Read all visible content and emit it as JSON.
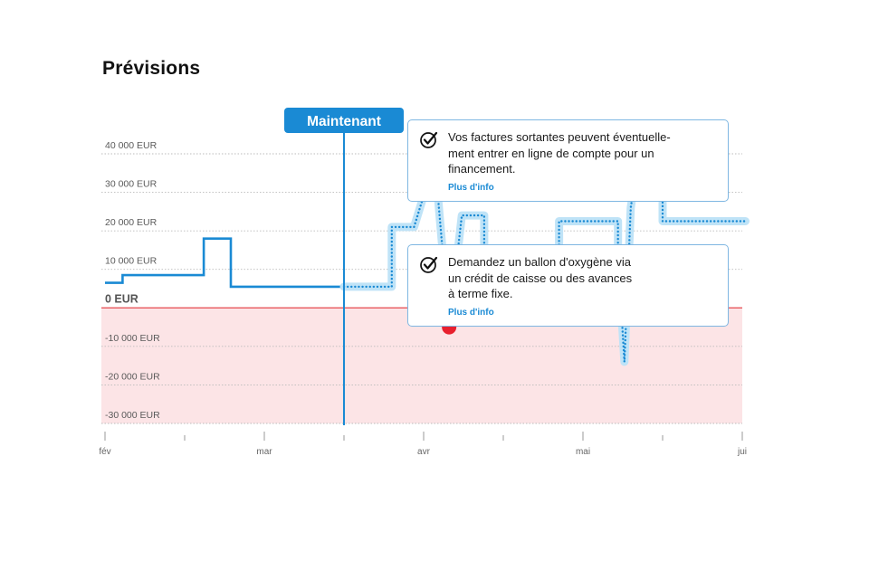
{
  "page": {
    "title": "Prévisions"
  },
  "now_marker": {
    "label": "Maintenant",
    "x": 1.5
  },
  "colors": {
    "line": "#1a8ad4",
    "halo": "#bfe3f7",
    "negative_zone": "#fce4e6",
    "zero_line": "#e5484d",
    "warning_dot": "#e8202e",
    "grid": "#bbbbbb"
  },
  "callouts": [
    {
      "icon": "check-circle-icon",
      "text_lines": [
        "Vos factures sortantes peuvent éventuelle-",
        "ment entrer en ligne de compte pour un",
        "financement."
      ],
      "link": "Plus d'info"
    },
    {
      "icon": "check-circle-icon",
      "text_lines": [
        "Demandez un ballon d'oxygène via",
        "un crédit de caisse ou des avances",
        "à terme fixe."
      ],
      "link": "Plus d'info"
    }
  ],
  "chart_data": {
    "type": "line",
    "title": "Prévisions",
    "xlabel": "",
    "ylabel": "",
    "x_unit": "month index (0 = fév, 4 = jui)",
    "xlim": [
      0,
      4
    ],
    "ylim": [
      -30000,
      40000
    ],
    "y_ticks": [
      {
        "value": 40000,
        "label": "40 000 EUR"
      },
      {
        "value": 30000,
        "label": "30 000 EUR"
      },
      {
        "value": 20000,
        "label": "20 000 EUR"
      },
      {
        "value": 10000,
        "label": "10 000 EUR"
      },
      {
        "value": 0,
        "label": "0 EUR"
      },
      {
        "value": -10000,
        "label": "-10 000 EUR"
      },
      {
        "value": -20000,
        "label": "-20 000 EUR"
      },
      {
        "value": -30000,
        "label": "-30 000 EUR"
      }
    ],
    "x_ticks": [
      {
        "value": 0,
        "label": "fév"
      },
      {
        "value": 0.5,
        "label": ""
      },
      {
        "value": 1,
        "label": "mar"
      },
      {
        "value": 1.5,
        "label": ""
      },
      {
        "value": 2,
        "label": "avr"
      },
      {
        "value": 2.5,
        "label": ""
      },
      {
        "value": 3,
        "label": "mai"
      },
      {
        "value": 3.5,
        "label": ""
      },
      {
        "value": 4,
        "label": "jui"
      }
    ],
    "grid": true,
    "negative_zone": true,
    "series": [
      {
        "style": "solid",
        "points": [
          [
            0,
            6500
          ],
          [
            0.11,
            6500
          ],
          [
            0.11,
            8500
          ],
          [
            0.62,
            8500
          ],
          [
            0.62,
            18000
          ],
          [
            0.79,
            18000
          ],
          [
            0.79,
            5500
          ],
          [
            1.5,
            5500
          ]
        ]
      },
      {
        "style": "dotted",
        "points": [
          [
            1.5,
            5500
          ],
          [
            1.8,
            5500
          ],
          [
            1.8,
            21000
          ],
          [
            1.94,
            21000
          ],
          [
            2.07,
            38500
          ],
          [
            2.16,
            -5000
          ],
          [
            2.24,
            24000
          ],
          [
            2.38,
            24000
          ],
          [
            2.38,
            14000
          ],
          [
            2.6,
            14000
          ],
          [
            2.6,
            10000
          ],
          [
            2.85,
            10000
          ],
          [
            2.85,
            22500
          ],
          [
            3.22,
            22500
          ],
          [
            3.22,
            14000
          ],
          [
            3.26,
            -14000
          ],
          [
            3.3,
            26000
          ],
          [
            3.35,
            40000
          ],
          [
            3.5,
            40000
          ],
          [
            3.5,
            22500
          ],
          [
            4.02,
            22500
          ]
        ]
      }
    ],
    "warning_point": {
      "x": 2.16,
      "y": -5000
    }
  }
}
